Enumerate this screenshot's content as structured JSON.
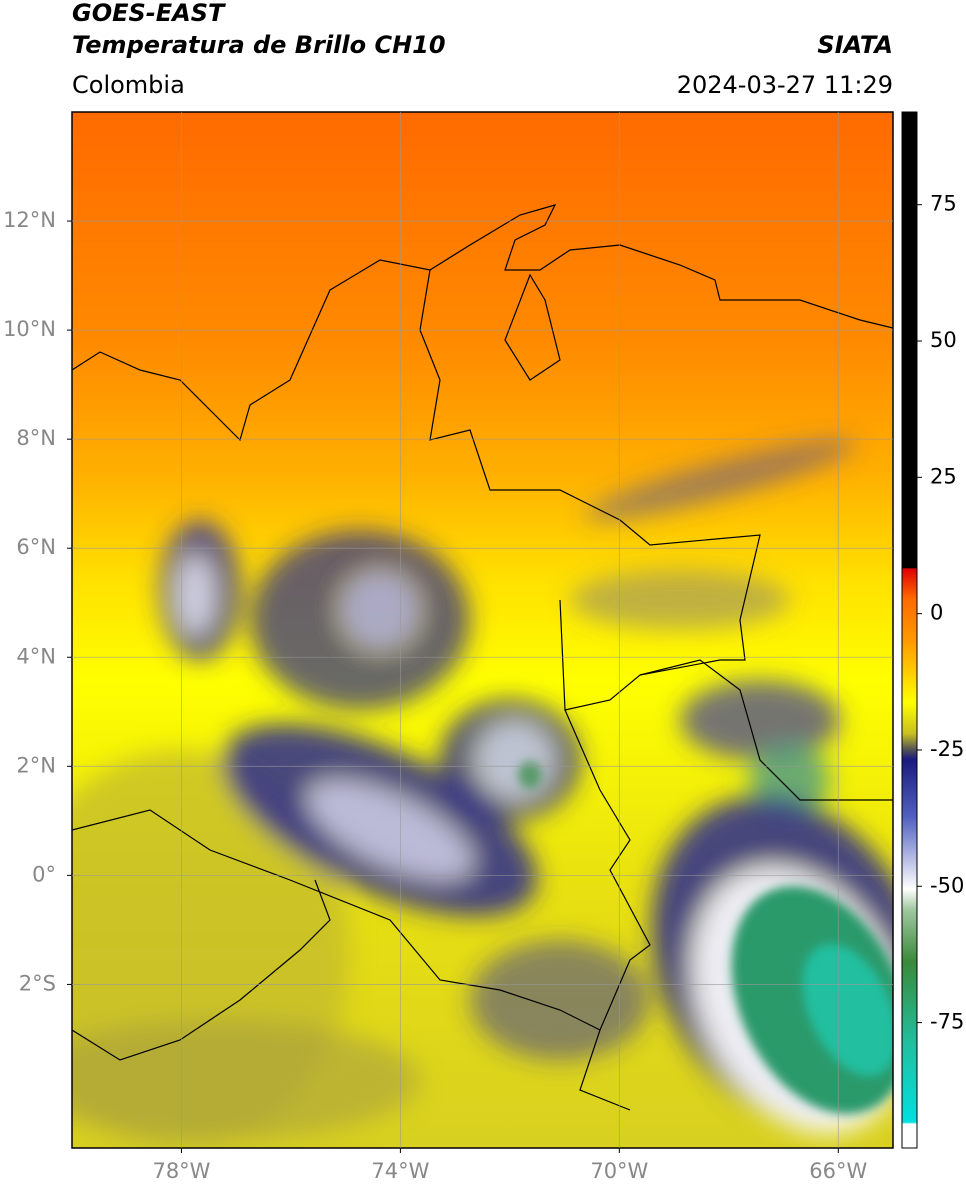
{
  "header": {
    "satellite": "GOES-EAST",
    "product": "Temperatura de Brillo CH10",
    "region": "Colombia",
    "source": "SIATA",
    "datetime": "2024-03-27 11:29"
  },
  "map": {
    "xlim": [
      -80,
      -65
    ],
    "ylim": [
      -5,
      14
    ],
    "lon_ticks": [
      {
        "value": -78,
        "label": "78°W"
      },
      {
        "value": -74,
        "label": "74°W"
      },
      {
        "value": -70,
        "label": "70°W"
      },
      {
        "value": -66,
        "label": "66°W"
      }
    ],
    "lat_ticks": [
      {
        "value": 12,
        "label": "12°N"
      },
      {
        "value": 10,
        "label": "10°N"
      },
      {
        "value": 8,
        "label": "8°N"
      },
      {
        "value": 6,
        "label": "6°N"
      },
      {
        "value": 4,
        "label": "4°N"
      },
      {
        "value": 2,
        "label": "2°N"
      },
      {
        "value": 0,
        "label": "0°"
      },
      {
        "value": -2,
        "label": "2°S"
      }
    ],
    "grid": true
  },
  "colorbar": {
    "lim": [
      -98,
      92
    ],
    "ticks": [
      75,
      50,
      25,
      0,
      -25,
      -50,
      -75
    ]
  }
}
